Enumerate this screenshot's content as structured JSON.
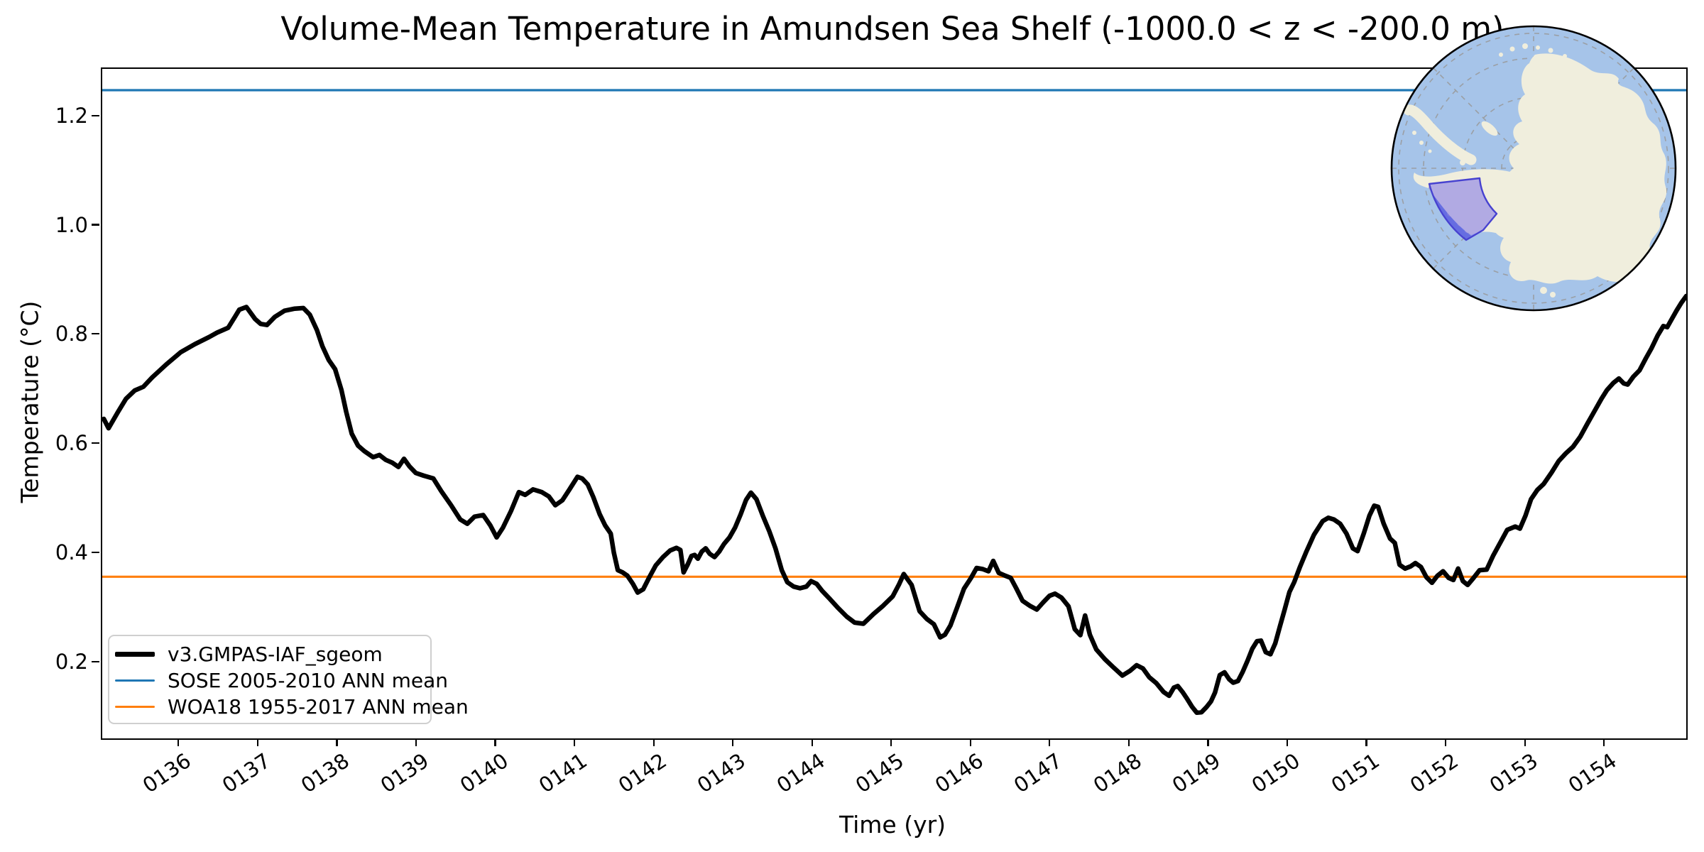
{
  "title": "Volume-Mean Temperature in Amundsen Sea Shelf (-1000.0 < z < -200.0 m)",
  "legend": {
    "items": [
      {
        "label": "v3.GMPAS-IAF_sgeom",
        "color": "#000000",
        "sample_thickness": 7
      },
      {
        "label": "SOSE 2005-2010 ANN mean",
        "color": "#1f77b4",
        "sample_thickness": 3.5
      },
      {
        "label": "WOA18 1955-2017 ANN mean",
        "color": "#ff7f0e",
        "sample_thickness": 3.5
      }
    ]
  },
  "inset_map": {
    "ocean_color": "#a6c4e9",
    "land_color": "#f0eedd",
    "highlight_fill": "#7166ea",
    "highlight_border": "#4742d0",
    "graticule_color": "#999999"
  },
  "chart_data": {
    "type": "line",
    "title": "Volume-Mean Temperature in Amundsen Sea Shelf (-1000.0 < z < -200.0 m)",
    "xlabel": "Time (yr)",
    "ylabel": "Temperature (°C)",
    "xlim": [
      135.02,
      155.02
    ],
    "ylim": [
      0.062,
      1.288
    ],
    "grid": false,
    "legend_position": "lower left",
    "x_tick_values": [
      136,
      137,
      138,
      139,
      140,
      141,
      142,
      143,
      144,
      145,
      146,
      147,
      148,
      149,
      150,
      151,
      152,
      153,
      154
    ],
    "x_tick_labels": [
      "0136",
      "0137",
      "0138",
      "0139",
      "0140",
      "0141",
      "0142",
      "0143",
      "0144",
      "0145",
      "0146",
      "0147",
      "0148",
      "0149",
      "0150",
      "0151",
      "0152",
      "0153",
      "0154"
    ],
    "y_tick_values": [
      0.2,
      0.4,
      0.6,
      0.8,
      1.0,
      1.2
    ],
    "y_tick_labels": [
      "0.2",
      "0.4",
      "0.6",
      "0.8",
      "1.0",
      "1.2"
    ],
    "series": [
      {
        "name": "v3.GMPAS-IAF_sgeom",
        "type": "line",
        "color": "#000000",
        "linewidth": 6.5,
        "x": [
          135.04,
          135.1,
          135.22,
          135.32,
          135.43,
          135.54,
          135.65,
          135.83,
          136.01,
          136.19,
          136.37,
          136.47,
          136.61,
          136.7,
          136.75,
          136.84,
          136.95,
          137.02,
          137.1,
          137.2,
          137.32,
          137.45,
          137.56,
          137.64,
          137.73,
          137.8,
          137.88,
          137.96,
          138.04,
          138.1,
          138.17,
          138.25,
          138.33,
          138.44,
          138.52,
          138.6,
          138.68,
          138.76,
          138.83,
          138.9,
          138.98,
          139.08,
          139.2,
          139.3,
          139.42,
          139.54,
          139.63,
          139.72,
          139.83,
          139.92,
          140.0,
          140.08,
          140.18,
          140.28,
          140.36,
          140.46,
          140.57,
          140.66,
          140.74,
          140.83,
          140.92,
          141.02,
          141.08,
          141.15,
          141.22,
          141.3,
          141.37,
          141.44,
          141.48,
          141.53,
          141.59,
          141.65,
          141.72,
          141.78,
          141.85,
          141.92,
          142.01,
          142.1,
          142.19,
          142.27,
          142.32,
          142.36,
          142.41,
          142.46,
          142.5,
          142.54,
          142.59,
          142.64,
          142.69,
          142.75,
          142.81,
          142.87,
          142.94,
          143.01,
          143.08,
          143.15,
          143.21,
          143.28,
          143.36,
          143.44,
          143.52,
          143.6,
          143.67,
          143.75,
          143.83,
          143.91,
          143.97,
          144.04,
          144.11,
          144.21,
          144.31,
          144.42,
          144.52,
          144.63,
          144.76,
          144.88,
          145.0,
          145.08,
          145.14,
          145.24,
          145.34,
          145.43,
          145.52,
          145.6,
          145.66,
          145.73,
          145.81,
          145.9,
          145.99,
          146.06,
          146.14,
          146.21,
          146.27,
          146.34,
          146.42,
          146.49,
          146.56,
          146.64,
          146.73,
          146.82,
          146.9,
          146.98,
          147.05,
          147.13,
          147.22,
          147.3,
          147.37,
          147.43,
          147.49,
          147.57,
          147.68,
          147.78,
          147.9,
          148.0,
          148.08,
          148.16,
          148.24,
          148.33,
          148.42,
          148.49,
          148.55,
          148.6,
          148.66,
          148.72,
          148.78,
          148.84,
          148.9,
          148.96,
          149.02,
          149.07,
          149.13,
          149.19,
          149.25,
          149.3,
          149.36,
          149.42,
          149.48,
          149.54,
          149.6,
          149.65,
          149.71,
          149.77,
          149.83,
          149.89,
          149.95,
          150.01,
          150.07,
          150.14,
          150.22,
          150.32,
          150.43,
          150.5,
          150.57,
          150.65,
          150.73,
          150.81,
          150.87,
          150.95,
          151.02,
          151.08,
          151.13,
          151.2,
          151.28,
          151.34,
          151.4,
          151.47,
          151.54,
          151.6,
          151.67,
          151.74,
          151.81,
          151.88,
          151.95,
          152.02,
          152.08,
          152.14,
          152.2,
          152.26,
          152.33,
          152.41,
          152.5,
          152.58,
          152.67,
          152.76,
          152.86,
          152.92,
          152.99,
          153.06,
          153.14,
          153.22,
          153.32,
          153.41,
          153.5,
          153.59,
          153.68,
          153.77,
          153.86,
          153.95,
          154.02,
          154.1,
          154.17,
          154.23,
          154.28,
          154.35,
          154.43,
          154.51,
          154.58,
          154.66,
          154.73,
          154.78,
          154.83,
          154.9,
          154.96,
          155.02
        ],
        "y": [
          0.647,
          0.63,
          0.66,
          0.684,
          0.699,
          0.706,
          0.723,
          0.747,
          0.769,
          0.784,
          0.797,
          0.805,
          0.814,
          0.835,
          0.847,
          0.852,
          0.83,
          0.821,
          0.819,
          0.834,
          0.845,
          0.849,
          0.85,
          0.838,
          0.81,
          0.78,
          0.755,
          0.738,
          0.7,
          0.66,
          0.62,
          0.598,
          0.588,
          0.577,
          0.581,
          0.572,
          0.567,
          0.559,
          0.574,
          0.56,
          0.548,
          0.543,
          0.538,
          0.515,
          0.49,
          0.463,
          0.455,
          0.468,
          0.471,
          0.452,
          0.43,
          0.448,
          0.478,
          0.513,
          0.508,
          0.518,
          0.513,
          0.505,
          0.489,
          0.498,
          0.518,
          0.541,
          0.538,
          0.527,
          0.504,
          0.473,
          0.452,
          0.437,
          0.402,
          0.37,
          0.366,
          0.36,
          0.345,
          0.329,
          0.335,
          0.355,
          0.379,
          0.394,
          0.406,
          0.411,
          0.407,
          0.366,
          0.38,
          0.396,
          0.398,
          0.391,
          0.404,
          0.41,
          0.4,
          0.394,
          0.404,
          0.418,
          0.43,
          0.448,
          0.472,
          0.499,
          0.512,
          0.5,
          0.47,
          0.442,
          0.41,
          0.37,
          0.348,
          0.34,
          0.337,
          0.34,
          0.35,
          0.345,
          0.332,
          0.317,
          0.301,
          0.285,
          0.274,
          0.272,
          0.29,
          0.305,
          0.322,
          0.344,
          0.363,
          0.343,
          0.295,
          0.281,
          0.271,
          0.247,
          0.252,
          0.269,
          0.3,
          0.336,
          0.356,
          0.374,
          0.372,
          0.368,
          0.387,
          0.365,
          0.36,
          0.356,
          0.337,
          0.314,
          0.305,
          0.298,
          0.311,
          0.323,
          0.327,
          0.32,
          0.304,
          0.262,
          0.251,
          0.287,
          0.252,
          0.225,
          0.207,
          0.193,
          0.177,
          0.186,
          0.196,
          0.19,
          0.174,
          0.163,
          0.147,
          0.14,
          0.155,
          0.158,
          0.147,
          0.134,
          0.12,
          0.109,
          0.11,
          0.119,
          0.13,
          0.146,
          0.178,
          0.183,
          0.17,
          0.164,
          0.167,
          0.184,
          0.204,
          0.226,
          0.24,
          0.241,
          0.22,
          0.216,
          0.236,
          0.267,
          0.298,
          0.33,
          0.348,
          0.375,
          0.403,
          0.435,
          0.46,
          0.466,
          0.463,
          0.455,
          0.437,
          0.41,
          0.405,
          0.438,
          0.47,
          0.488,
          0.486,
          0.455,
          0.428,
          0.42,
          0.38,
          0.373,
          0.377,
          0.383,
          0.376,
          0.357,
          0.347,
          0.36,
          0.368,
          0.356,
          0.352,
          0.373,
          0.35,
          0.343,
          0.355,
          0.37,
          0.371,
          0.396,
          0.42,
          0.444,
          0.45,
          0.446,
          0.47,
          0.5,
          0.517,
          0.528,
          0.549,
          0.57,
          0.584,
          0.596,
          0.614,
          0.638,
          0.661,
          0.684,
          0.7,
          0.713,
          0.721,
          0.712,
          0.71,
          0.724,
          0.736,
          0.758,
          0.776,
          0.8,
          0.817,
          0.815,
          0.828,
          0.846,
          0.86,
          0.872
        ]
      },
      {
        "name": "SOSE 2005-2010 ANN mean",
        "type": "hline",
        "color": "#1f77b4",
        "linewidth": 3.2,
        "value": 1.249
      },
      {
        "name": "WOA18 1955-2017 ANN mean",
        "type": "hline",
        "color": "#ff7f0e",
        "linewidth": 3.2,
        "value": 0.358
      }
    ]
  }
}
